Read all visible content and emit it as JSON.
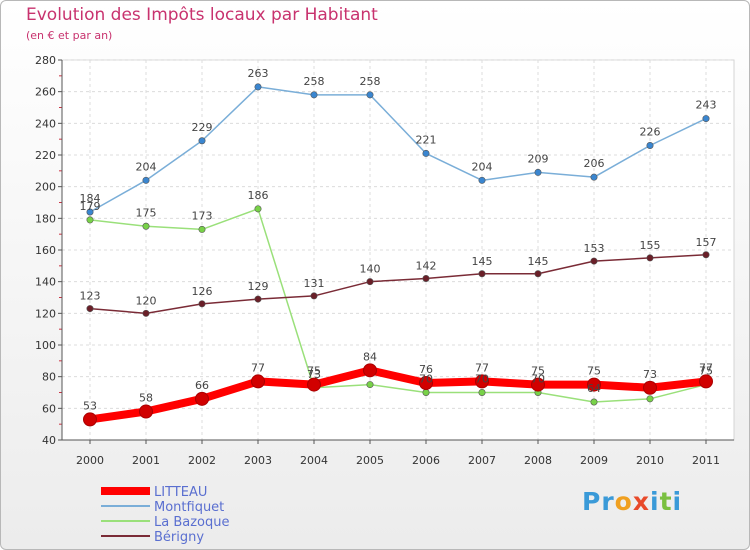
{
  "title": "Evolution des Impôts locaux par Habitant",
  "subtitle": "(en € et par an)",
  "logo_text": "Proxiti",
  "chart_data": {
    "type": "line",
    "title": "Evolution des Impôts locaux par Habitant",
    "subtitle": "(en € et par an)",
    "xlabel": "",
    "ylabel": "",
    "x": [
      "2000",
      "2001",
      "2002",
      "2003",
      "2004",
      "2005",
      "2006",
      "2007",
      "2008",
      "2009",
      "2010",
      "2011"
    ],
    "ylim": [
      40,
      280
    ],
    "yticks": [
      40,
      60,
      80,
      100,
      120,
      140,
      160,
      180,
      200,
      220,
      240,
      260,
      280
    ],
    "grid": true,
    "legend_position": "bottom-left",
    "series": [
      {
        "name": "LITTEAU",
        "color": "#ff0000",
        "marker": "#d10000",
        "emphasis": true,
        "values": [
          53,
          58,
          66,
          77,
          75,
          84,
          76,
          77,
          75,
          75,
          73,
          77
        ],
        "labels": [
          "53",
          "58",
          "66",
          "77",
          "75",
          "84",
          "76",
          "77",
          "75",
          "75",
          "73",
          "77"
        ]
      },
      {
        "name": "Montfiquet",
        "color": "#7aaed8",
        "marker": "#3a86d0",
        "values": [
          184,
          204,
          229,
          263,
          258,
          258,
          221,
          204,
          209,
          206,
          226,
          243
        ],
        "labels": [
          "184",
          "204",
          "229",
          "263",
          "258",
          "258",
          "221",
          "204",
          "209",
          "206",
          "226",
          "243"
        ]
      },
      {
        "name": "La Bazoque",
        "color": "#9ae07a",
        "marker": "#78d248",
        "values": [
          179,
          175,
          173,
          186,
          73,
          75,
          70,
          70,
          70,
          64,
          66,
          75
        ],
        "labels": [
          "179",
          "175",
          "173",
          "186",
          "73",
          "",
          "70",
          "70",
          "70",
          "64",
          "",
          "75"
        ]
      },
      {
        "name": "Bérigny",
        "color": "#7a2b36",
        "marker": "#6a1f28",
        "values": [
          123,
          120,
          126,
          129,
          131,
          140,
          142,
          145,
          145,
          153,
          155,
          157
        ],
        "labels": [
          "123",
          "120",
          "126",
          "129",
          "131",
          "140",
          "142",
          "145",
          "145",
          "153",
          "155",
          "157"
        ]
      }
    ]
  }
}
